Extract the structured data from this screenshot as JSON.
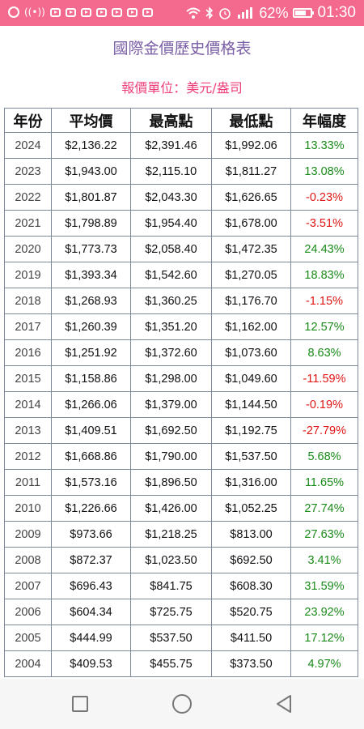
{
  "status": {
    "battery": "62%",
    "time": "01:30"
  },
  "title": "國際金價歷史價格表",
  "subtitle": "報價單位：美元/盎司",
  "table": {
    "headers": [
      "年份",
      "平均價",
      "最高點",
      "最低點",
      "年幅度"
    ],
    "rows": [
      {
        "year": "2024",
        "avg": "$2,136.22",
        "high": "$2,391.46",
        "low": "$1,992.06",
        "change": "13.33%",
        "dir": "pos"
      },
      {
        "year": "2023",
        "avg": "$1,943.00",
        "high": "$2,115.10",
        "low": "$1,811.27",
        "change": "13.08%",
        "dir": "pos"
      },
      {
        "year": "2022",
        "avg": "$1,801.87",
        "high": "$2,043.30",
        "low": "$1,626.65",
        "change": "-0.23%",
        "dir": "neg"
      },
      {
        "year": "2021",
        "avg": "$1,798.89",
        "high": "$1,954.40",
        "low": "$1,678.00",
        "change": "-3.51%",
        "dir": "neg"
      },
      {
        "year": "2020",
        "avg": "$1,773.73",
        "high": "$2,058.40",
        "low": "$1,472.35",
        "change": "24.43%",
        "dir": "pos"
      },
      {
        "year": "2019",
        "avg": "$1,393.34",
        "high": "$1,542.60",
        "low": "$1,270.05",
        "change": "18.83%",
        "dir": "pos"
      },
      {
        "year": "2018",
        "avg": "$1,268.93",
        "high": "$1,360.25",
        "low": "$1,176.70",
        "change": "-1.15%",
        "dir": "neg"
      },
      {
        "year": "2017",
        "avg": "$1,260.39",
        "high": "$1,351.20",
        "low": "$1,162.00",
        "change": "12.57%",
        "dir": "pos"
      },
      {
        "year": "2016",
        "avg": "$1,251.92",
        "high": "$1,372.60",
        "low": "$1,073.60",
        "change": "8.63%",
        "dir": "pos"
      },
      {
        "year": "2015",
        "avg": "$1,158.86",
        "high": "$1,298.00",
        "low": "$1,049.60",
        "change": "-11.59%",
        "dir": "neg"
      },
      {
        "year": "2014",
        "avg": "$1,266.06",
        "high": "$1,379.00",
        "low": "$1,144.50",
        "change": "-0.19%",
        "dir": "neg"
      },
      {
        "year": "2013",
        "avg": "$1,409.51",
        "high": "$1,692.50",
        "low": "$1,192.75",
        "change": "-27.79%",
        "dir": "neg"
      },
      {
        "year": "2012",
        "avg": "$1,668.86",
        "high": "$1,790.00",
        "low": "$1,537.50",
        "change": "5.68%",
        "dir": "pos"
      },
      {
        "year": "2011",
        "avg": "$1,573.16",
        "high": "$1,896.50",
        "low": "$1,316.00",
        "change": "11.65%",
        "dir": "pos"
      },
      {
        "year": "2010",
        "avg": "$1,226.66",
        "high": "$1,426.00",
        "low": "$1,052.25",
        "change": "27.74%",
        "dir": "pos"
      },
      {
        "year": "2009",
        "avg": "$973.66",
        "high": "$1,218.25",
        "low": "$813.00",
        "change": "27.63%",
        "dir": "pos"
      },
      {
        "year": "2008",
        "avg": "$872.37",
        "high": "$1,023.50",
        "low": "$692.50",
        "change": "3.41%",
        "dir": "pos"
      },
      {
        "year": "2007",
        "avg": "$696.43",
        "high": "$841.75",
        "low": "$608.30",
        "change": "31.59%",
        "dir": "pos"
      },
      {
        "year": "2006",
        "avg": "$604.34",
        "high": "$725.75",
        "low": "$520.75",
        "change": "23.92%",
        "dir": "pos"
      },
      {
        "year": "2005",
        "avg": "$444.99",
        "high": "$537.50",
        "low": "$411.50",
        "change": "17.12%",
        "dir": "pos"
      },
      {
        "year": "2004",
        "avg": "$409.53",
        "high": "$455.75",
        "low": "$373.50",
        "change": "4.97%",
        "dir": "pos"
      }
    ]
  },
  "colors": {
    "status_bar": "#f36a8e",
    "title": "#7a5fa6",
    "subtitle": "#ee3f7a",
    "positive": "#1a8a1a",
    "negative": "#e01515"
  },
  "icons": [
    "play-icon",
    "settings-icon",
    "bluetooth-icon",
    "alarm-icon",
    "signal-icon",
    "battery-icon",
    "nav-recents-icon",
    "nav-home-icon",
    "nav-back-icon"
  ]
}
